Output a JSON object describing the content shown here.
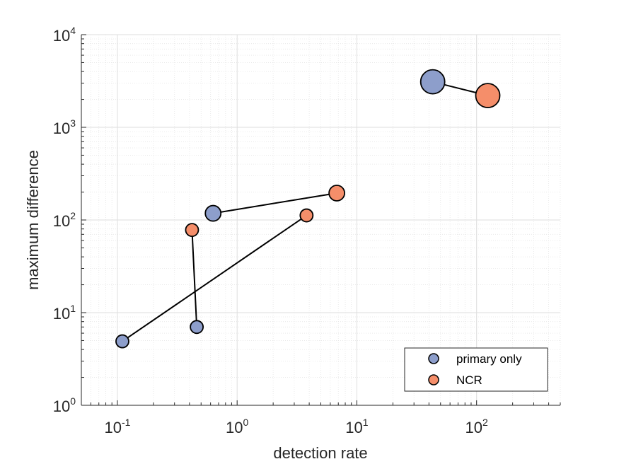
{
  "chart_data": {
    "type": "scatter",
    "xlabel": "detection rate",
    "ylabel": "maximum difference",
    "xscale": "log",
    "yscale": "log",
    "xlim": [
      0.05,
      500
    ],
    "ylim": [
      1,
      10000
    ],
    "x_ticks": [
      {
        "base": "10",
        "exp": "-1",
        "value": 0.1
      },
      {
        "base": "10",
        "exp": "0",
        "value": 1
      },
      {
        "base": "10",
        "exp": "1",
        "value": 10
      },
      {
        "base": "10",
        "exp": "2",
        "value": 100
      }
    ],
    "y_ticks": [
      {
        "base": "10",
        "exp": "0",
        "value": 1
      },
      {
        "base": "10",
        "exp": "1",
        "value": 10
      },
      {
        "base": "10",
        "exp": "2",
        "value": 100
      },
      {
        "base": "10",
        "exp": "3",
        "value": 1000
      },
      {
        "base": "10",
        "exp": "4",
        "value": 10000
      }
    ],
    "grid": true,
    "minor_grid": true,
    "legend_position": "bottom-right",
    "series": [
      {
        "name": "primary only",
        "color": "#8d9ecb",
        "points": [
          {
            "x": 0.11,
            "y": 4.9,
            "size": "small"
          },
          {
            "x": 0.46,
            "y": 7.0,
            "size": "small"
          },
          {
            "x": 0.63,
            "y": 118,
            "size": "medium"
          },
          {
            "x": 43,
            "y": 3100,
            "size": "large"
          }
        ]
      },
      {
        "name": "NCR",
        "color": "#f58e6a",
        "points": [
          {
            "x": 3.8,
            "y": 112,
            "size": "small"
          },
          {
            "x": 0.42,
            "y": 78,
            "size": "small"
          },
          {
            "x": 6.8,
            "y": 195,
            "size": "medium"
          },
          {
            "x": 124,
            "y": 2200,
            "size": "large"
          }
        ]
      }
    ],
    "connections": [
      [
        0,
        0
      ],
      [
        1,
        1
      ],
      [
        2,
        2
      ],
      [
        3,
        3
      ]
    ]
  }
}
